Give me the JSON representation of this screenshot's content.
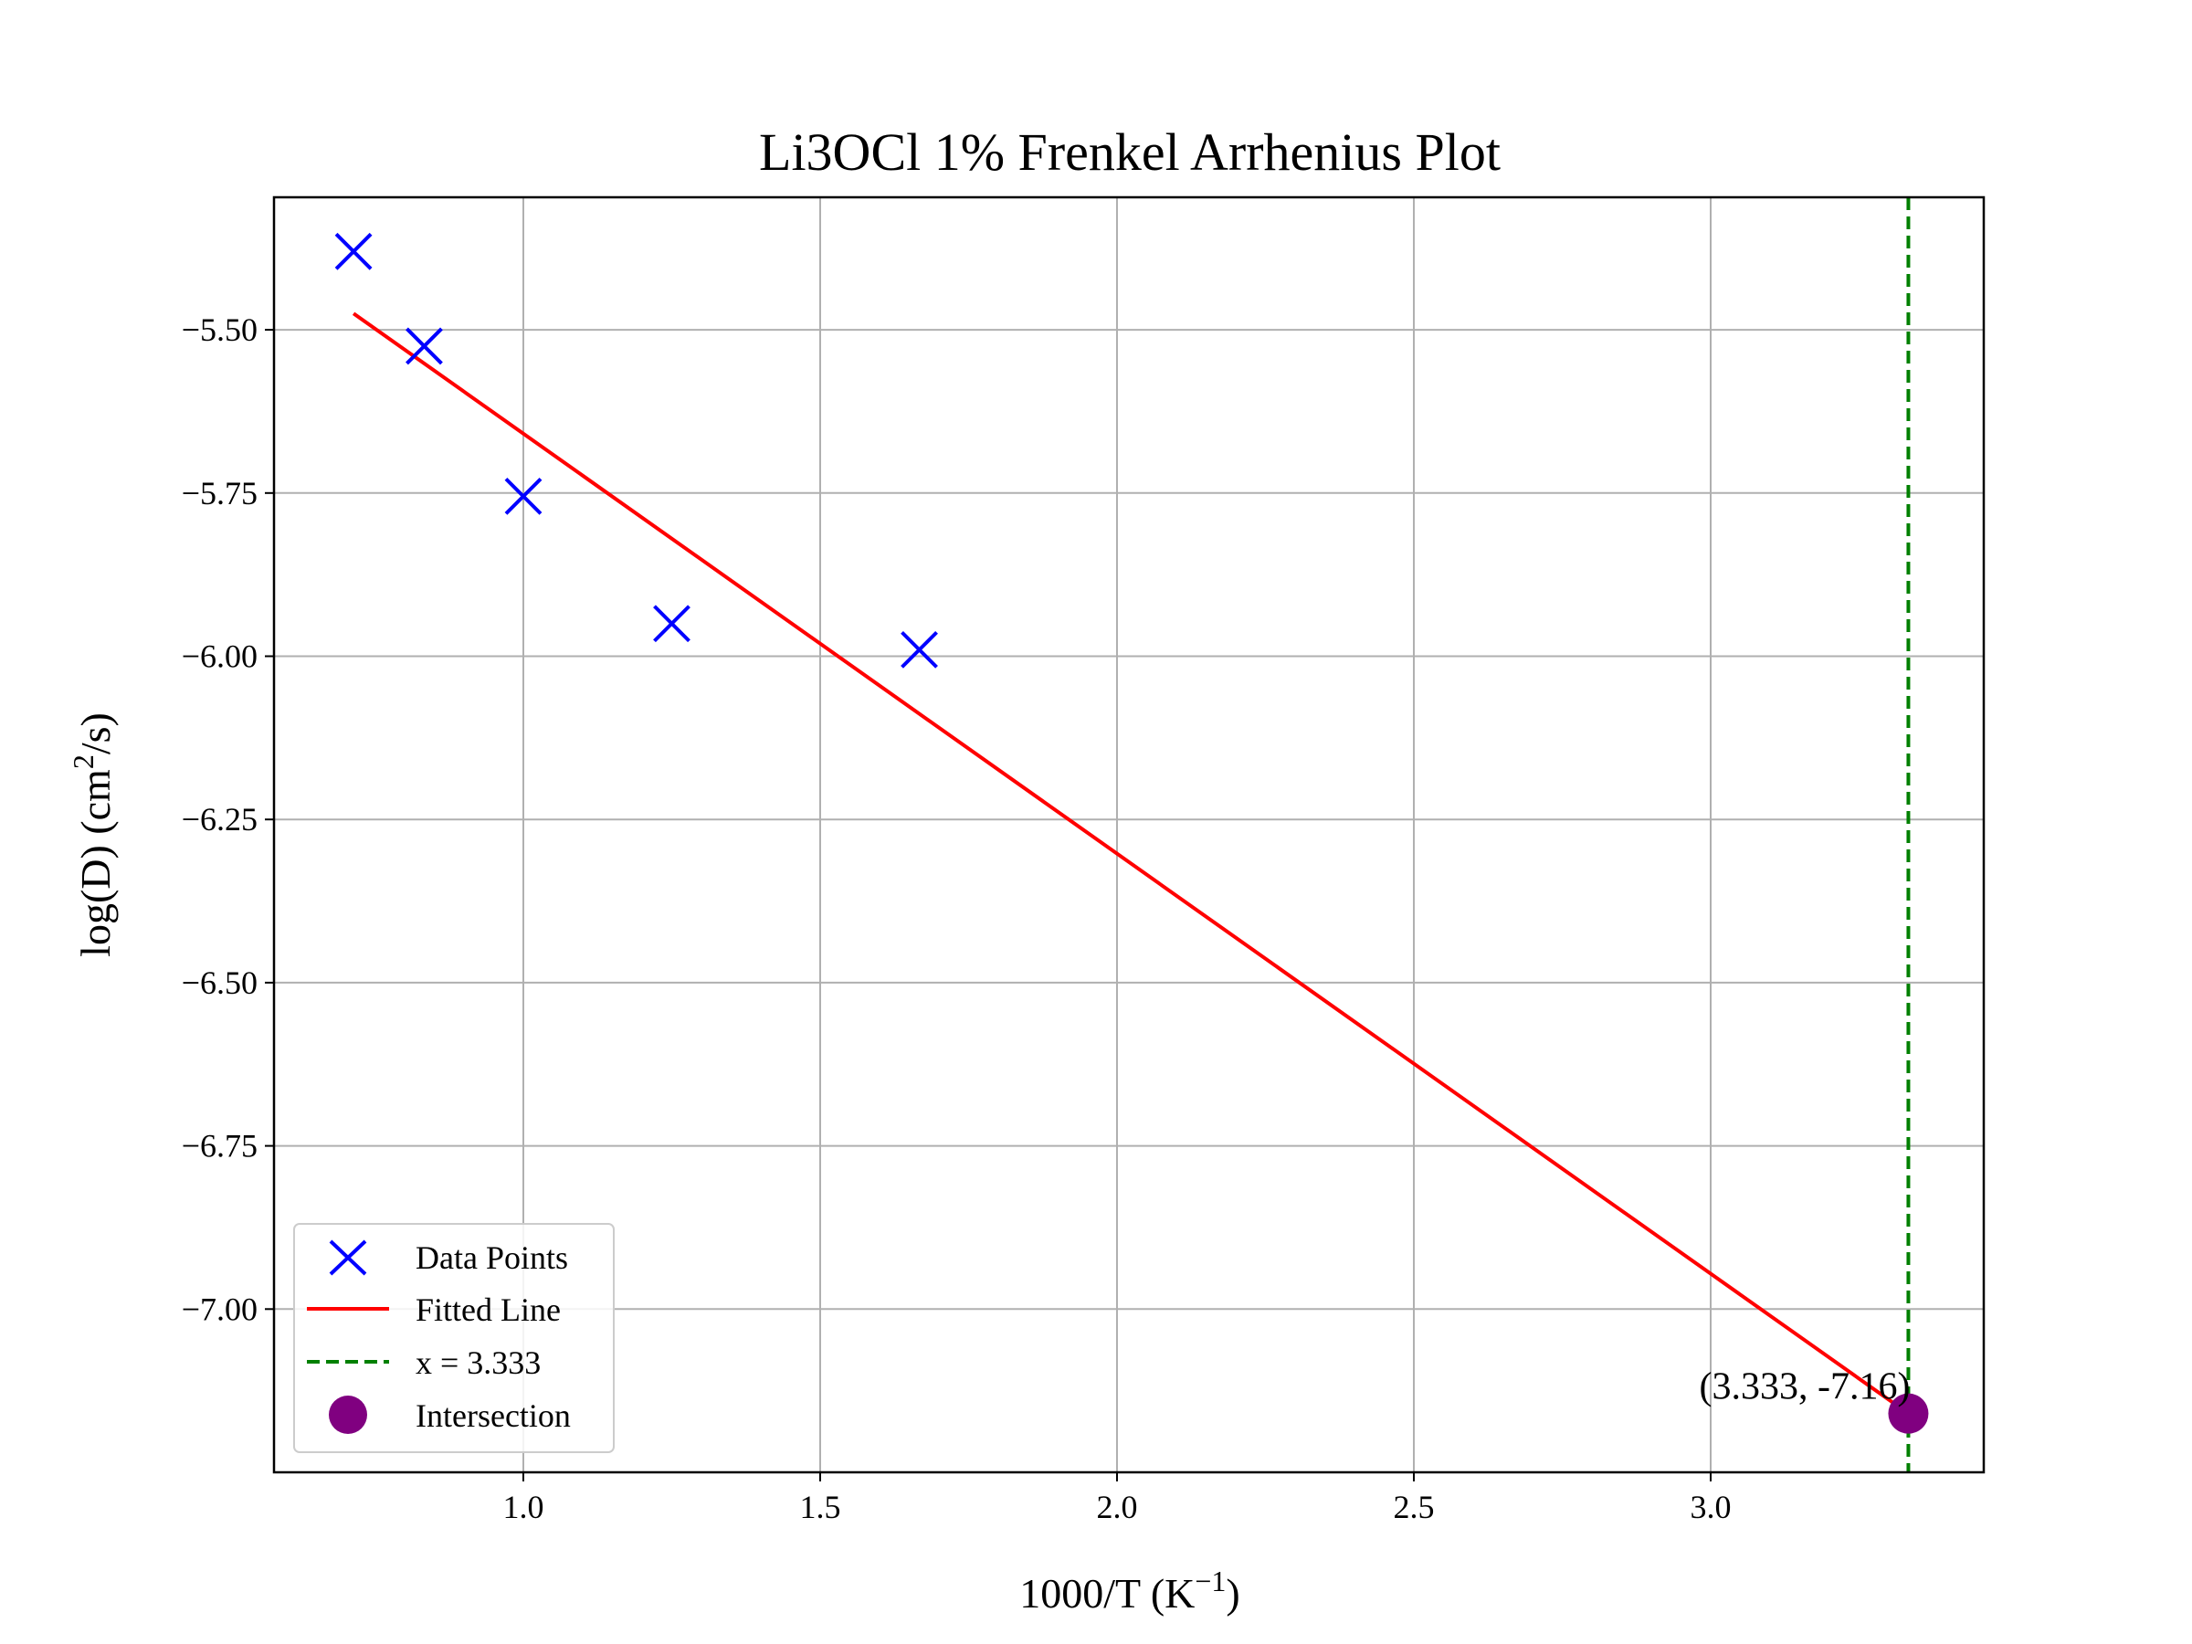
{
  "chart_data": {
    "type": "scatter",
    "title": "Li3OCl 1% Frenkel Arrhenius Plot",
    "xlabel": "1000/T (K",
    "xlabel_sup": "−1",
    "xlabel_close": ")",
    "ylabel": "log(D) (cm",
    "ylabel_sup": "2",
    "ylabel_close": "/s)",
    "xlim": [
      0.58,
      3.46
    ],
    "ylim": [
      -7.25,
      -5.297
    ],
    "grid": true,
    "legend_position": "lower-left",
    "x_ticks": [
      1.0,
      1.5,
      2.0,
      2.5,
      3.0
    ],
    "x_tick_labels": [
      "1.0",
      "1.5",
      "2.0",
      "2.5",
      "3.0"
    ],
    "y_ticks": [
      -5.5,
      -5.75,
      -6.0,
      -6.25,
      -6.5,
      -6.75,
      -7.0
    ],
    "y_tick_labels": [
      "−5.50",
      "−5.75",
      "−6.00",
      "−6.25",
      "−6.50",
      "−6.75",
      "−7.00"
    ],
    "series": [
      {
        "name": "Data Points",
        "kind": "scatter",
        "marker": "x",
        "color": "#0000ff",
        "x": [
          0.714,
          0.833,
          1.0,
          1.25,
          1.667
        ],
        "y": [
          -5.38,
          -5.525,
          -5.755,
          -5.95,
          -5.99
        ]
      },
      {
        "name": "Fitted Line",
        "kind": "line",
        "color": "#ff0000",
        "x": [
          0.714,
          3.333
        ],
        "y": [
          -5.475,
          -7.16
        ]
      },
      {
        "name": "x = 3.333",
        "kind": "vline",
        "color": "#008000",
        "dash": true,
        "x": 3.333
      },
      {
        "name": "Intersection",
        "kind": "point",
        "color": "#800080",
        "x": 3.333,
        "y": -7.16
      }
    ],
    "annotations": [
      {
        "text": "(3.333, -7.16)",
        "x": 3.333,
        "y": -7.16
      }
    ]
  }
}
